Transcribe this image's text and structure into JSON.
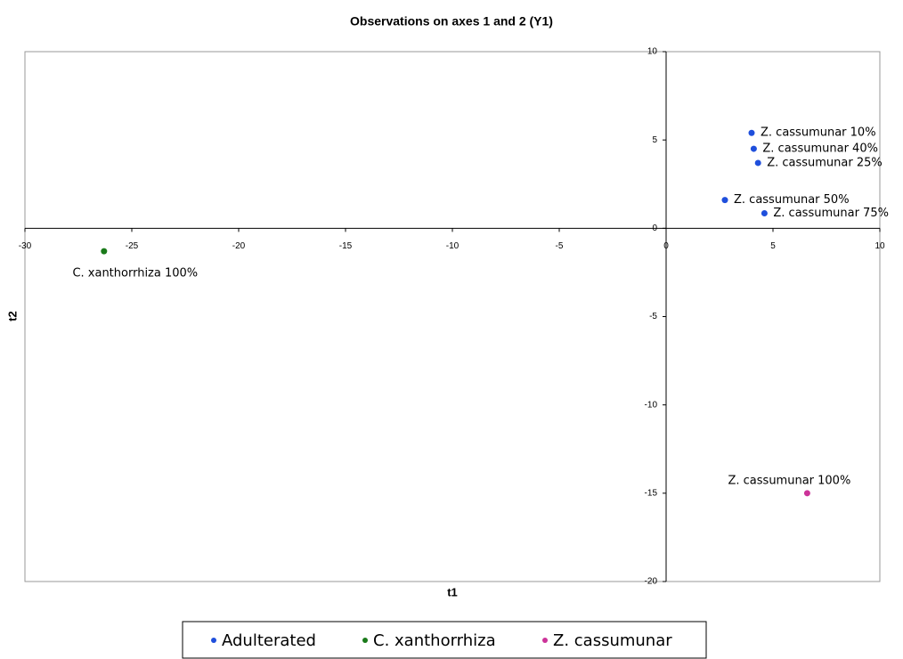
{
  "chart_data": {
    "type": "scatter",
    "title": "Observations on axes 1 and 2 (Y1)",
    "x_label": "t1",
    "y_label": "t2",
    "xlim": [
      -30,
      10
    ],
    "ylim": [
      -20,
      10
    ],
    "xticks": [
      -30,
      -25,
      -20,
      -15,
      -10,
      -5,
      0,
      5,
      10
    ],
    "yticks": [
      -20,
      -15,
      -10,
      -5,
      0,
      5,
      10
    ],
    "grid": false,
    "legend": "bottom",
    "series": [
      {
        "name": "Adulterated",
        "color": "#1f4fdc",
        "x": [
          4.0,
          4.1,
          4.3,
          2.75,
          4.6
        ],
        "y": [
          5.4,
          4.5,
          3.7,
          1.6,
          0.85
        ],
        "labels": [
          "Z. cassumunar 10%",
          "Z. cassumunar 40%",
          "Z. cassumunar 25%",
          "Z. cassumunar 50%",
          "Z. cassumunar 75%"
        ]
      },
      {
        "name": "C. xanthorrhiza",
        "color": "#1a7a1a",
        "x": [
          -26.3
        ],
        "y": [
          -1.3
        ],
        "labels": [
          "C. xanthorrhiza 100%"
        ]
      },
      {
        "name": "Z. cassumunar",
        "color": "#cc3399",
        "x": [
          6.6
        ],
        "y": [
          -15.0
        ],
        "labels": [
          "Z. cassumunar 100%"
        ]
      }
    ]
  }
}
